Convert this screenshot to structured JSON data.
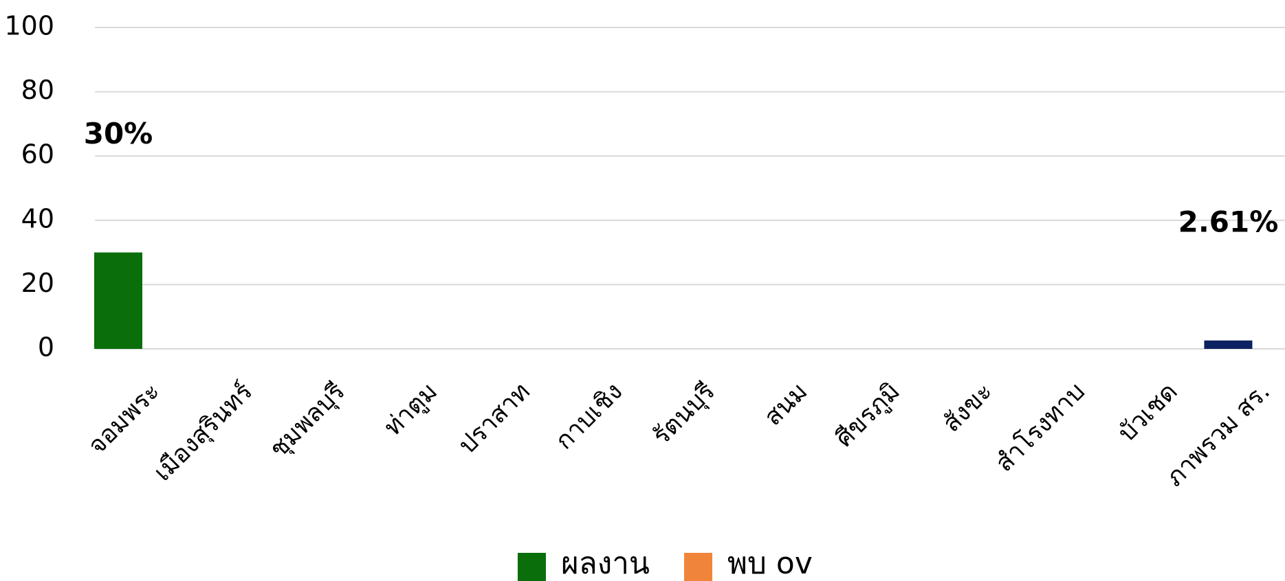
{
  "chart_data": {
    "type": "bar",
    "categories": [
      "จอมพระ",
      "เมืองสุรินทร์",
      "ชุมพลบุรี",
      "ท่าตูม",
      "ปราสาท",
      "กาบเชิง",
      "รัตนบุรี",
      "สนม",
      "ศีขรภูมิ",
      "สังขะ",
      "สำโรงทาบ",
      "บัวเชด",
      "ภาพรวม สร."
    ],
    "series": [
      {
        "name": "ผลงาน",
        "color": "#0a6e0a",
        "point_colors": [
          "#0a6e0a",
          "#0a6e0a",
          "#0a6e0a",
          "#0a6e0a",
          "#0a6e0a",
          "#0a6e0a",
          "#0a6e0a",
          "#0a6e0a",
          "#0a6e0a",
          "#0a6e0a",
          "#0a6e0a",
          "#0a6e0a",
          "#0b2161"
        ],
        "values": [
          30,
          0,
          0,
          0,
          0,
          0,
          0,
          0,
          0,
          0,
          0,
          0,
          2.61
        ],
        "value_labels": [
          "30%",
          null,
          null,
          null,
          null,
          null,
          null,
          null,
          null,
          null,
          null,
          null,
          "2.61%"
        ]
      },
      {
        "name": "พบ ov",
        "color": "#f0843a",
        "values": [
          0,
          0,
          0,
          0,
          0,
          0,
          0,
          0,
          0,
          0,
          0,
          0,
          0
        ]
      }
    ],
    "ylim": [
      0,
      100
    ],
    "yticks": [
      0,
      20,
      40,
      60,
      80,
      100
    ],
    "grid": true,
    "legend": "bottom"
  }
}
